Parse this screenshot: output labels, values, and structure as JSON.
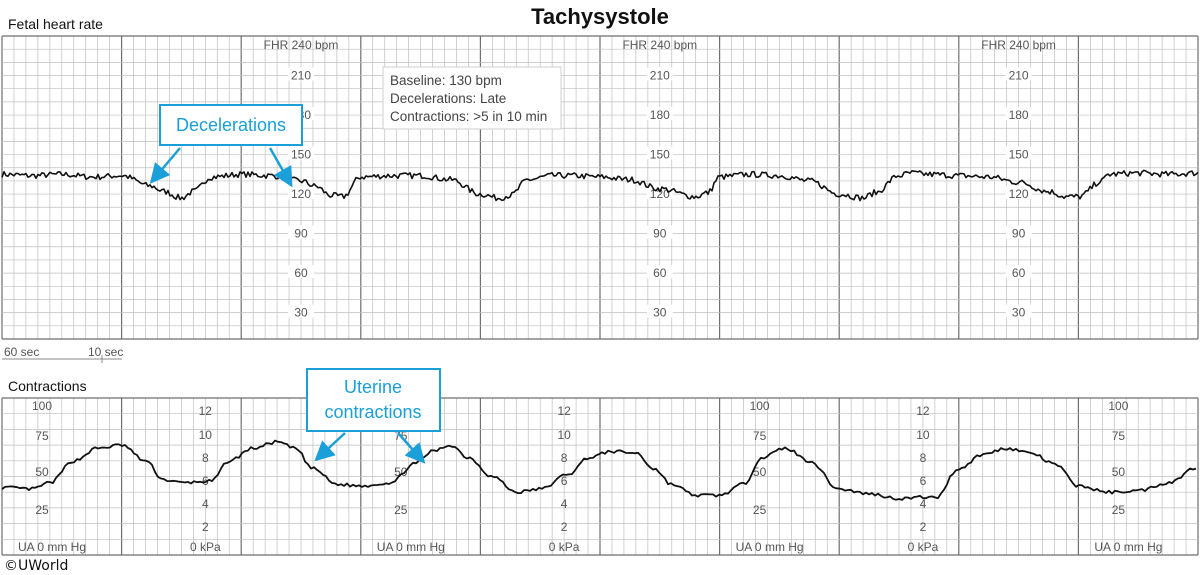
{
  "title": "Tachysystole",
  "fhr_section_label": "Fetal heart rate",
  "ua_section_label": "Contractions",
  "copyright": "©UWorld",
  "info_box": {
    "baseline": "Baseline: 130 bpm",
    "decelerations": "Decelerations: Late",
    "contractions": "Contractions: >5 in 10 min"
  },
  "callouts": {
    "decelerations": [
      "Decelerations"
    ],
    "uterine": [
      "Uterine",
      "contractions"
    ]
  },
  "time_scale": {
    "major": "60 sec",
    "minor": "10 sec"
  },
  "colors": {
    "trace": "#111111",
    "grid_minor": "#bfbfbf",
    "grid_major": "#6e6e6e",
    "callout": "#1a9fd8"
  },
  "chart_data": [
    {
      "type": "line",
      "name": "fetal-heart-rate",
      "ylabel": "FHR 240 bpm",
      "ylim": [
        10,
        240
      ],
      "y_tick_labels": [
        "210",
        "180",
        "150",
        "120",
        "90",
        "60",
        "30"
      ],
      "x_unit": "min",
      "xlim": [
        0,
        10
      ],
      "x": [
        0,
        0.25,
        0.5,
        0.75,
        1.0,
        1.25,
        1.35,
        1.5,
        1.6,
        1.75,
        2.0,
        2.25,
        2.5,
        2.62,
        2.75,
        2.85,
        3.0,
        3.25,
        3.5,
        3.75,
        4.0,
        4.15,
        4.25,
        4.4,
        4.6,
        4.75,
        5.0,
        5.25,
        5.5,
        5.8,
        5.9,
        6.0,
        6.25,
        6.5,
        6.75,
        7.0,
        7.2,
        7.3,
        7.5,
        7.6,
        7.75,
        8.0,
        8.25,
        8.5,
        8.75,
        8.9,
        9.0,
        9.2,
        9.25,
        9.5,
        9.75,
        10.0
      ],
      "y": [
        135,
        134,
        135,
        133,
        134,
        126,
        122,
        117,
        122,
        133,
        135,
        134,
        130,
        126,
        119,
        118,
        133,
        134,
        134,
        131,
        120,
        117,
        119,
        131,
        134,
        134,
        133,
        131,
        124,
        118,
        121,
        133,
        135,
        134,
        130,
        120,
        117,
        121,
        134,
        136,
        135,
        134,
        133,
        129,
        122,
        118,
        118,
        130,
        135,
        136,
        135,
        136
      ]
    },
    {
      "type": "line",
      "name": "uterine-activity",
      "ylabel": "UA 0 mm Hg",
      "ylim": [
        0,
        100
      ],
      "y_tick_labels": [
        "100",
        "75",
        "50",
        "25"
      ],
      "secondary_unit": "0 kPa",
      "secondary_tick_labels": [
        "12",
        "10",
        "8",
        "6",
        "4",
        "2"
      ],
      "x_unit": "min",
      "xlim": [
        0,
        10
      ],
      "x": [
        0,
        0.25,
        0.4,
        0.6,
        0.8,
        1.0,
        1.2,
        1.35,
        1.5,
        1.75,
        1.9,
        2.1,
        2.3,
        2.45,
        2.6,
        2.8,
        3.0,
        3.25,
        3.45,
        3.6,
        3.75,
        3.9,
        4.1,
        4.3,
        4.5,
        4.75,
        4.9,
        5.1,
        5.3,
        5.45,
        5.6,
        5.8,
        6.0,
        6.2,
        6.35,
        6.55,
        6.75,
        7.0,
        7.25,
        7.5,
        7.75,
        7.8,
        8.0,
        8.2,
        8.4,
        8.6,
        8.8,
        9.0,
        9.25,
        9.5,
        9.75,
        10.0
      ],
      "y": [
        43,
        42,
        46,
        60,
        68,
        70,
        60,
        48,
        46,
        47,
        60,
        68,
        72,
        68,
        55,
        45,
        44,
        46,
        58,
        66,
        70,
        62,
        50,
        40,
        42,
        52,
        62,
        66,
        65,
        55,
        45,
        38,
        38,
        45,
        62,
        68,
        60,
        42,
        39,
        36,
        37,
        36,
        55,
        64,
        68,
        65,
        58,
        44,
        40,
        41,
        46,
        56
      ]
    }
  ]
}
